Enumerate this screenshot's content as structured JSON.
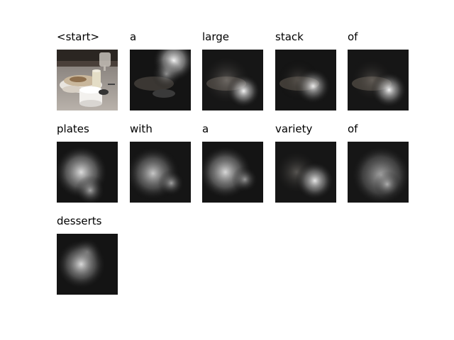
{
  "tokens": [
    {
      "word": "<start>",
      "attention": "original"
    },
    {
      "word": "a",
      "attention": "top-center"
    },
    {
      "word": "large",
      "attention": "center-bottom"
    },
    {
      "word": "stack",
      "attention": "center-bottom"
    },
    {
      "word": "of",
      "attention": "center-bottom"
    },
    {
      "word": "plates",
      "attention": "left-center"
    },
    {
      "word": "with",
      "attention": "left-center"
    },
    {
      "word": "a",
      "attention": "left-center"
    },
    {
      "word": "variety",
      "attention": "center-bottom"
    },
    {
      "word": "of",
      "attention": "center-wide"
    },
    {
      "word": "desserts",
      "attention": "left-center"
    }
  ],
  "colors": {
    "background": "#ffffff",
    "text": "#000000",
    "table": "#5a5a5a",
    "dark": "#141414"
  }
}
